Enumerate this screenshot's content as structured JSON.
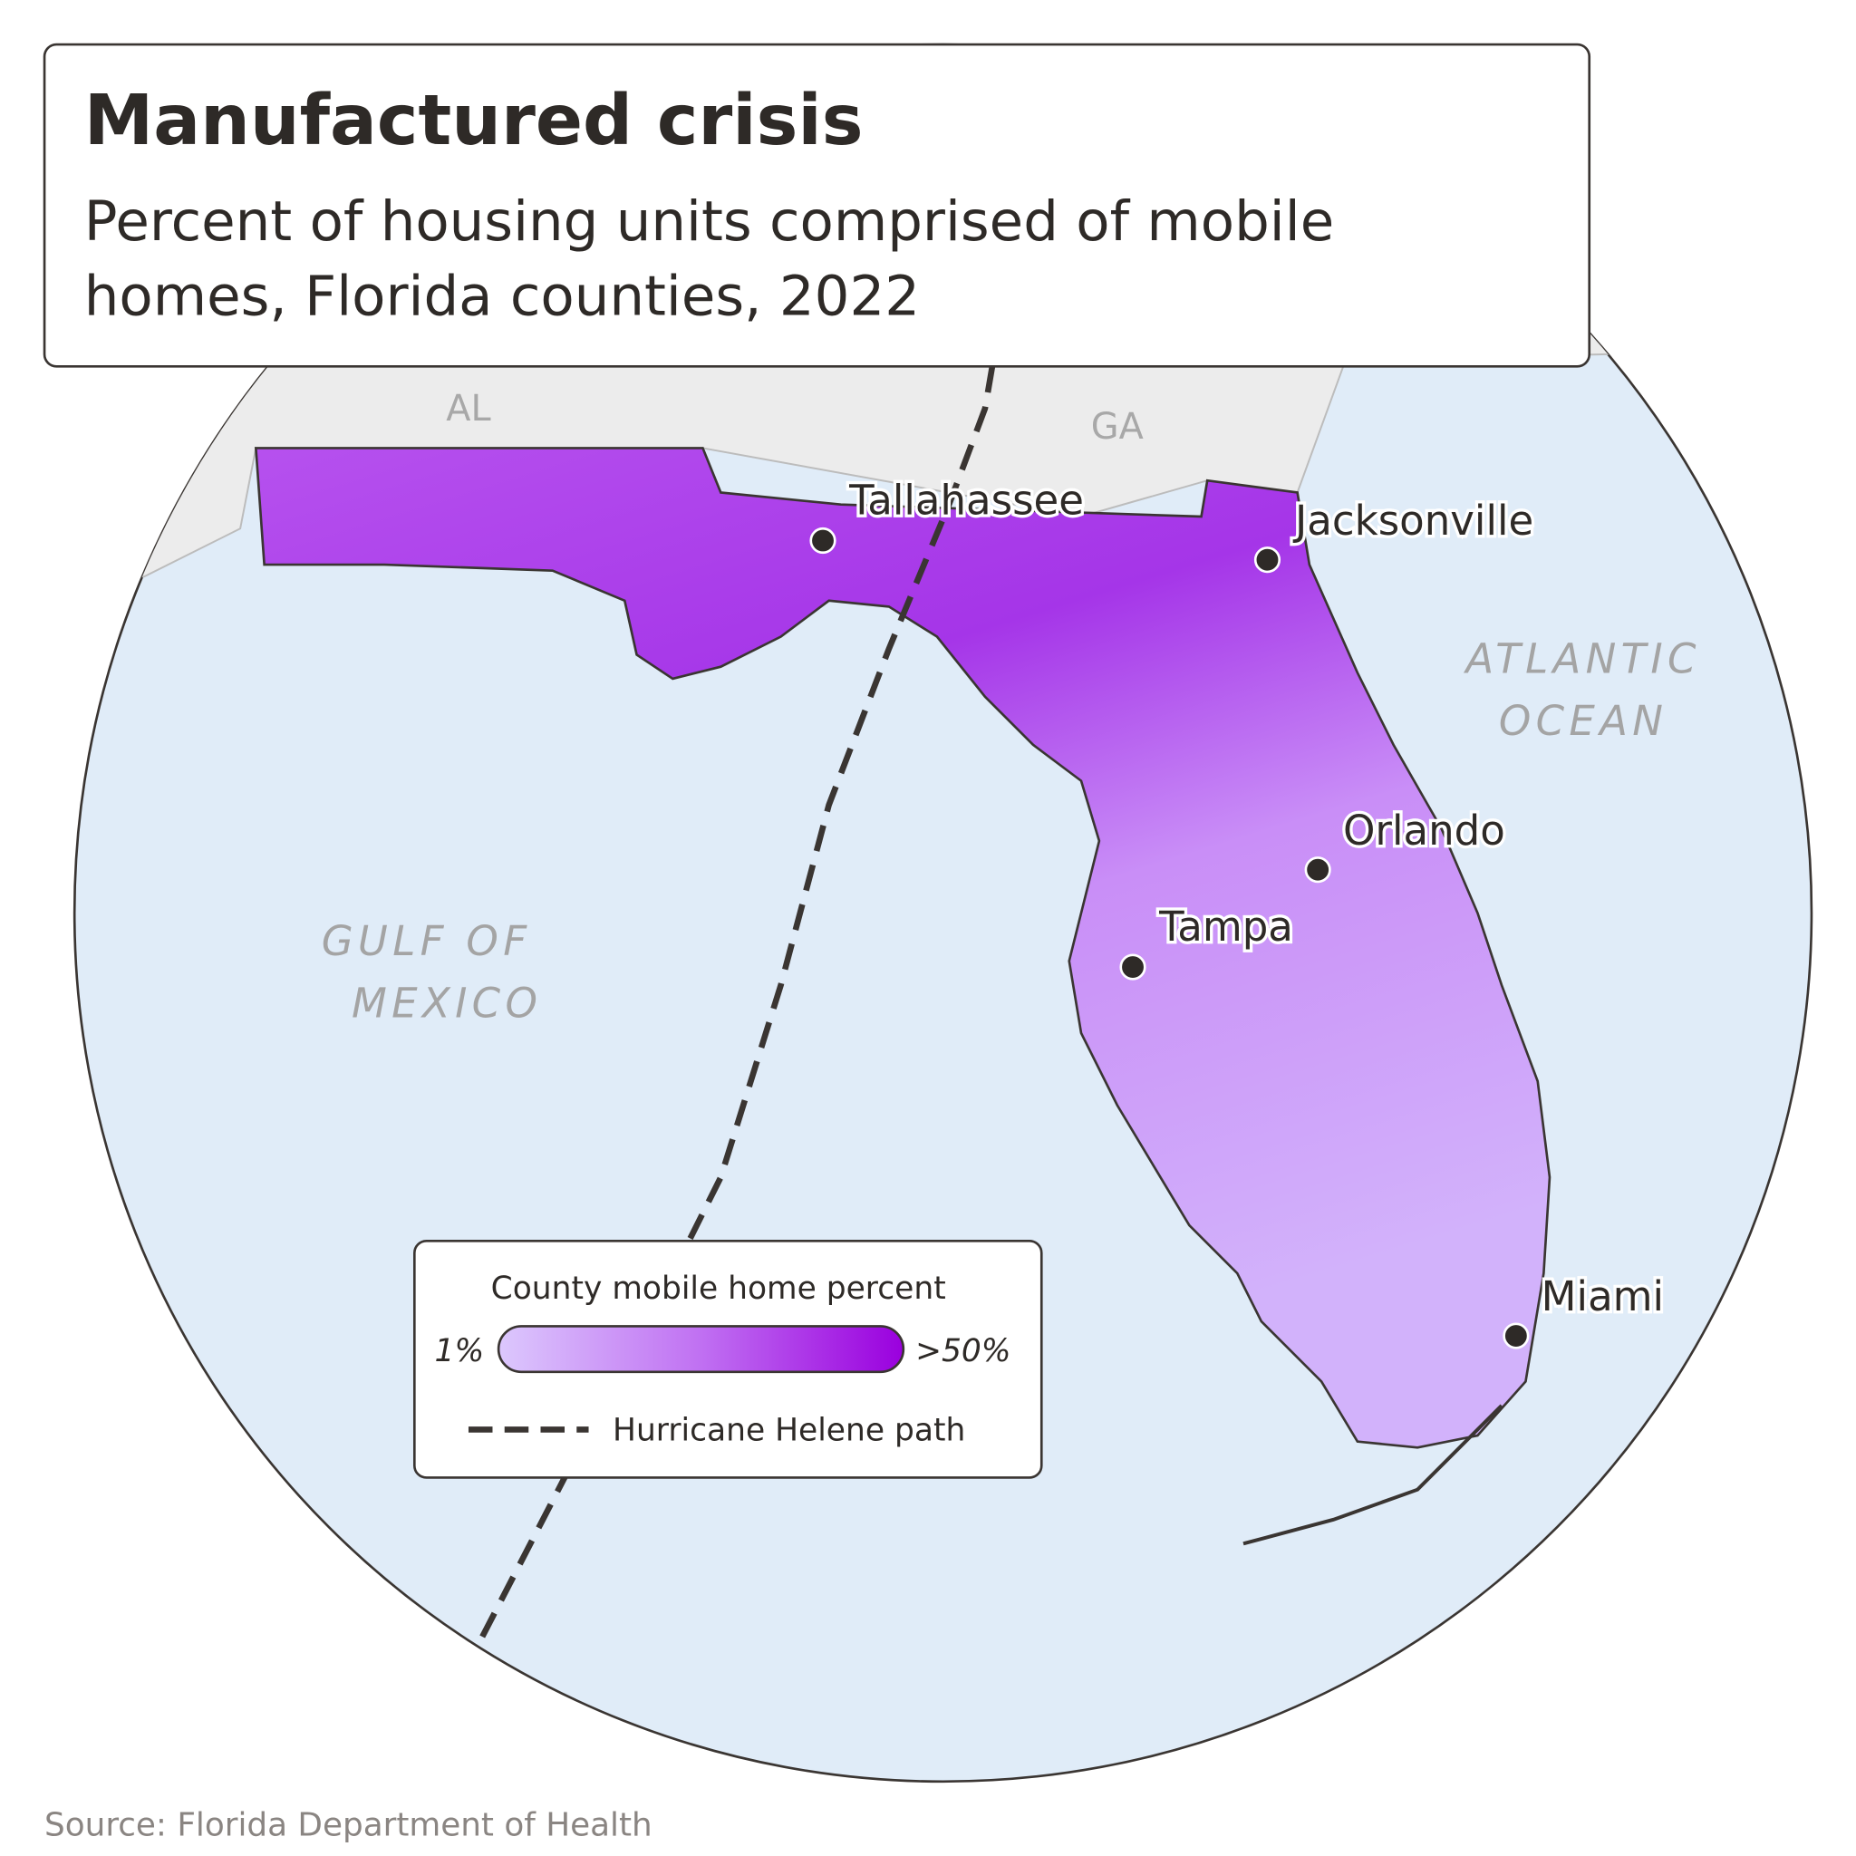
{
  "header": {
    "title": "Manufactured crisis",
    "subtitle": [
      "Percent of housing units comprised of mobile",
      "homes, Florida counties, 2022"
    ]
  },
  "map": {
    "regions": [
      "AL",
      "GA"
    ],
    "water": {
      "gulf": [
        "GULF OF",
        "MEXICO"
      ],
      "atlantic": [
        "ATLANTIC",
        "OCEAN"
      ]
    },
    "cities": [
      "Tallahassee",
      "Jacksonville",
      "Orlando",
      "Tampa",
      "Miami"
    ]
  },
  "legend": {
    "title": "County mobile home percent",
    "min_label": "1%",
    "max_label": ">50%",
    "path_label": "Hurricane Helene path"
  },
  "source": "Source: Florida Department of Health"
}
